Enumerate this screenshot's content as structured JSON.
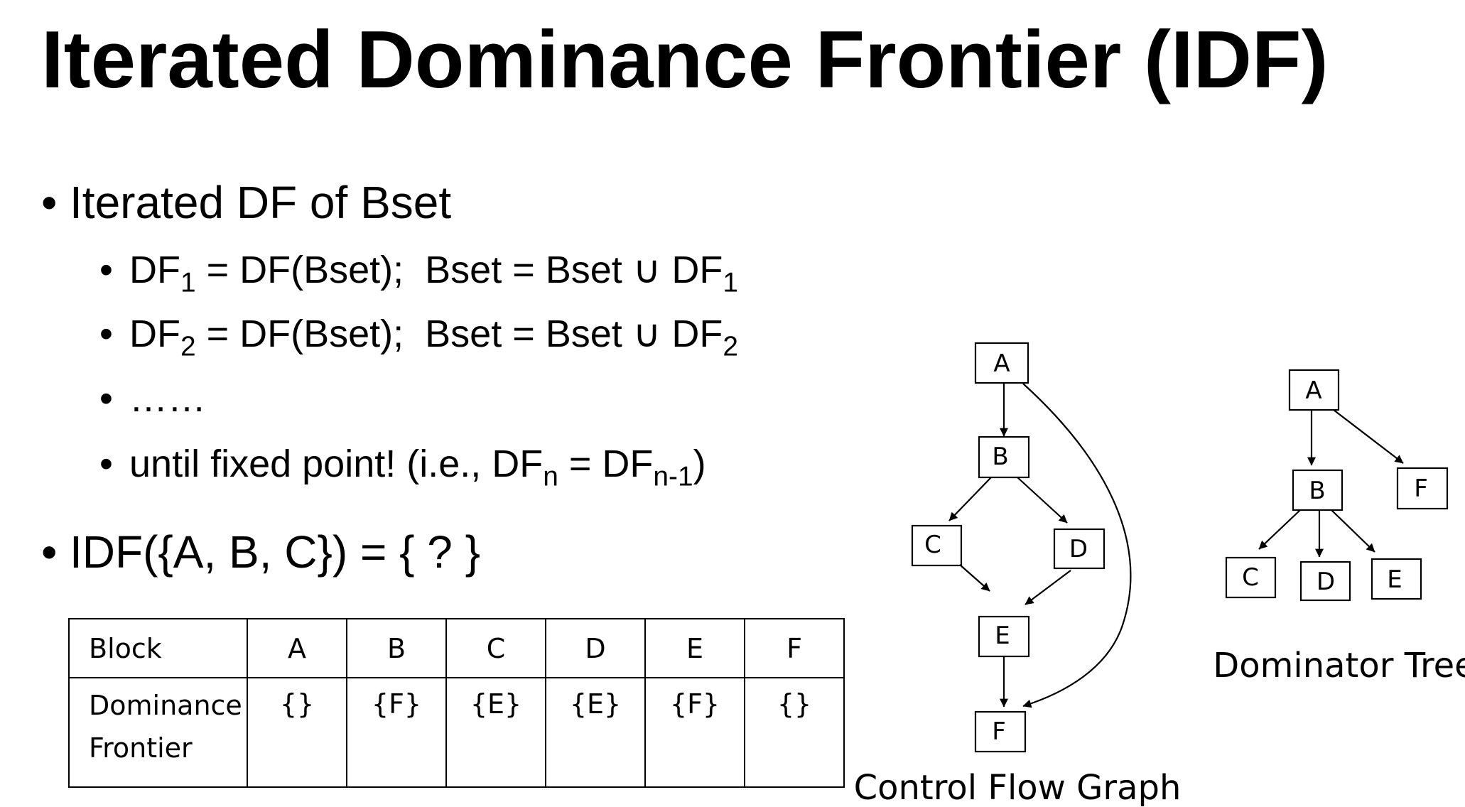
{
  "title": "Iterated Dominance Frontier (IDF)",
  "bullets": {
    "b1": "Iterated DF of Bset",
    "s1": {
      "a": "DF",
      "a_sub": "1",
      "b": " = DF(Bset);  Bset = Bset ∪ DF",
      "b_sub": "1"
    },
    "s2": {
      "a": "DF",
      "a_sub": "2",
      "b": " = DF(Bset);  Bset = Bset ∪ DF",
      "b_sub": "2"
    },
    "s3": "……",
    "s4": {
      "a": "until fixed point! (i.e., DF",
      "a_sub": "n",
      "b": " = DF",
      "b_sub": "n-1",
      "c": ")"
    },
    "b2": "IDF({A, B, C}) = { ? }"
  },
  "table": {
    "row1_header": "Block",
    "blocks": [
      "A",
      "B",
      "C",
      "D",
      "E",
      "F"
    ],
    "row2_header_line1": "Dominance",
    "row2_header_line2": "Frontier",
    "frontiers": [
      "{}",
      "{F}",
      "{E}",
      "{E}",
      "{F}",
      "{}"
    ]
  },
  "cfg": {
    "caption": "Control Flow Graph",
    "nodes": [
      "A",
      "B",
      "C",
      "D",
      "E",
      "F"
    ],
    "edges": [
      [
        "A",
        "B"
      ],
      [
        "B",
        "C"
      ],
      [
        "B",
        "D"
      ],
      [
        "C",
        "E"
      ],
      [
        "D",
        "E"
      ],
      [
        "E",
        "F"
      ],
      [
        "A",
        "F"
      ]
    ]
  },
  "domtree": {
    "caption": "Dominator Tree",
    "nodes": [
      "A",
      "B",
      "F",
      "C",
      "D",
      "E"
    ],
    "edges": [
      [
        "A",
        "B"
      ],
      [
        "A",
        "F"
      ],
      [
        "B",
        "C"
      ],
      [
        "B",
        "D"
      ],
      [
        "B",
        "E"
      ]
    ]
  }
}
